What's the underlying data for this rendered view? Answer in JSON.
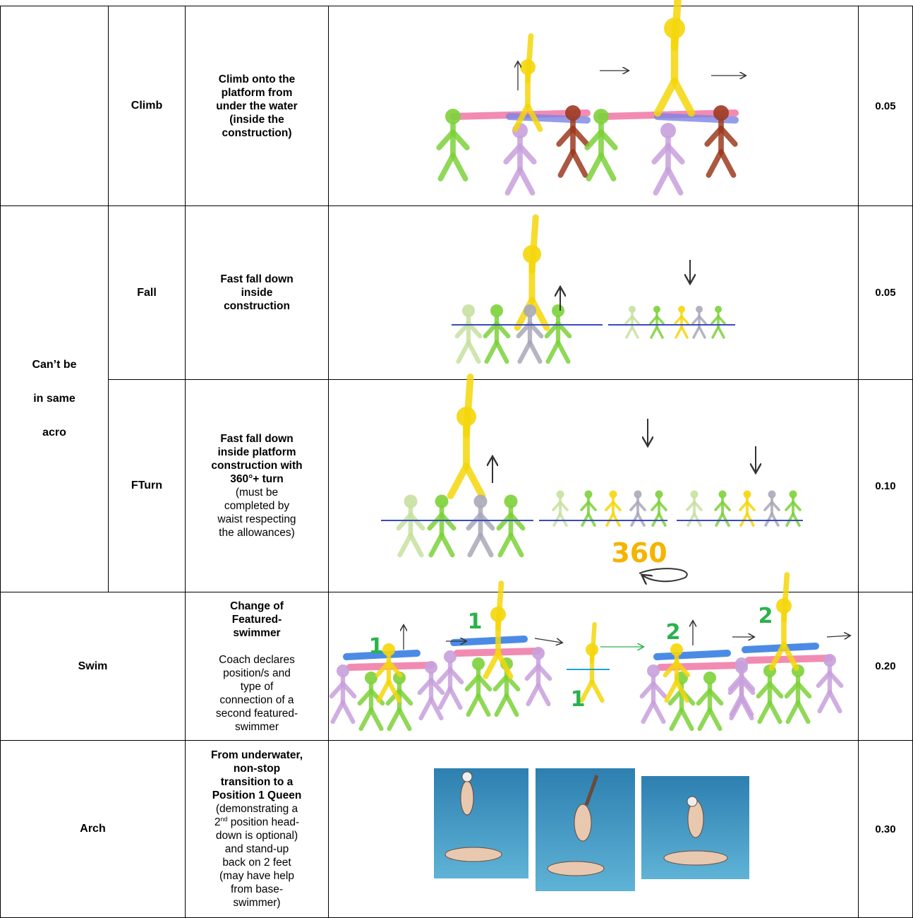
{
  "table": {
    "rows": [
      {
        "element": "Climb",
        "description": [
          "Climb onto the",
          "platform from",
          "under the water",
          "(inside the",
          "construction)"
        ],
        "value": "0.05"
      },
      {
        "element": "Fall",
        "description": [
          "Fast fall down",
          "inside",
          "construction"
        ],
        "value": "0.05"
      },
      {
        "element": "FTurn",
        "description": [
          "Fast fall down",
          "inside platform",
          "construction with",
          "360°+ turn"
        ],
        "note": [
          "(must be",
          "completed by",
          "waist respecting",
          "the allowances)"
        ],
        "figure_labels": [
          "360"
        ],
        "value": "0.10"
      },
      {
        "element": "Swim",
        "description": [
          "Change of",
          "Featured-",
          "swimmer"
        ],
        "note": [
          "Coach declares",
          "position/s and",
          "type of",
          "connection of a",
          "second featured-",
          "swimmer"
        ],
        "figure_labels": [
          "1",
          "1",
          "1",
          "2",
          "2"
        ],
        "value": "0.20"
      },
      {
        "element": "Arch",
        "description": [
          "From underwater,",
          "non-stop",
          "transition to a",
          "Position 1 Queen"
        ],
        "note": [
          "(demonstrating a",
          {
            "text": "2",
            "sup": "nd",
            "rest": " position head-"
          },
          "down is optional)",
          "and stand-up",
          "back on 2 feet",
          "(may have help",
          "from base-",
          "swimmer)"
        ],
        "value": "0.30"
      }
    ],
    "group": [
      "Can’t be",
      "in same",
      "acro"
    ]
  }
}
